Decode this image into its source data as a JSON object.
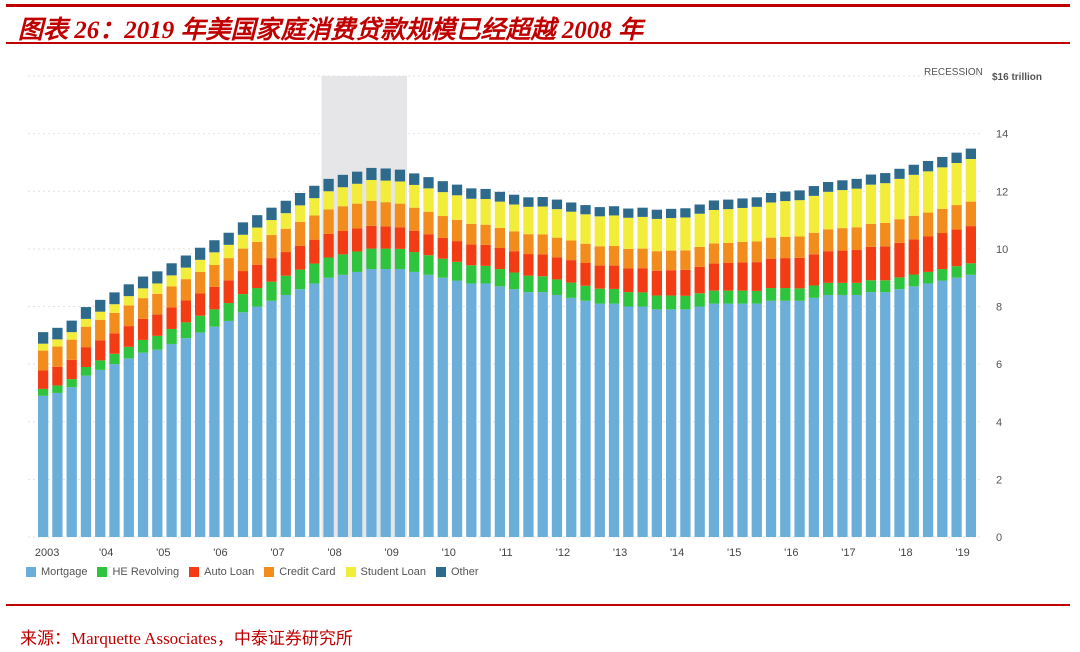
{
  "figure": {
    "title": "图表 26：2019 年美国家庭消费贷款规模已经超越 2008 年",
    "source": "来源：Marquette Associates，中泰证券研究所"
  },
  "chart_data": {
    "type": "bar",
    "stacked": true,
    "unit_label": "$16 trillion",
    "recession_label": "RECESSION",
    "recession_span": [
      "2008Q1",
      "2009Q2"
    ],
    "y_axis_position": "right",
    "ylim": [
      0,
      16
    ],
    "y_ticks": [
      "0",
      "2",
      "4",
      "6",
      "8",
      "10",
      "12",
      "14"
    ],
    "x_tick_labels": [
      "2003",
      "'04",
      "'05",
      "'06",
      "'07",
      "'08",
      "'09",
      "'10",
      "'11",
      "'12",
      "'13",
      "'14",
      "'15",
      "'16",
      "'17",
      "'18",
      "'19"
    ],
    "categories": [
      "2003Q1",
      "2003Q2",
      "2003Q3",
      "2003Q4",
      "2004Q1",
      "2004Q2",
      "2004Q3",
      "2004Q4",
      "2005Q1",
      "2005Q2",
      "2005Q3",
      "2005Q4",
      "2006Q1",
      "2006Q2",
      "2006Q3",
      "2006Q4",
      "2007Q1",
      "2007Q2",
      "2007Q3",
      "2007Q4",
      "2008Q1",
      "2008Q2",
      "2008Q3",
      "2008Q4",
      "2009Q1",
      "2009Q2",
      "2009Q3",
      "2009Q4",
      "2010Q1",
      "2010Q2",
      "2010Q3",
      "2010Q4",
      "2011Q1",
      "2011Q2",
      "2011Q3",
      "2011Q4",
      "2012Q1",
      "2012Q2",
      "2012Q3",
      "2012Q4",
      "2013Q1",
      "2013Q2",
      "2013Q3",
      "2013Q4",
      "2014Q1",
      "2014Q2",
      "2014Q3",
      "2014Q4",
      "2015Q1",
      "2015Q2",
      "2015Q3",
      "2015Q4",
      "2016Q1",
      "2016Q2",
      "2016Q3",
      "2016Q4",
      "2017Q1",
      "2017Q2",
      "2017Q3",
      "2017Q4",
      "2018Q1",
      "2018Q2",
      "2018Q3",
      "2018Q4",
      "2019Q1",
      "2019Q2"
    ],
    "series": [
      {
        "name": "Mortgage",
        "color": "#6aaed9",
        "values": [
          4.9,
          5.0,
          5.2,
          5.6,
          5.8,
          6.0,
          6.2,
          6.4,
          6.5,
          6.7,
          6.9,
          7.1,
          7.3,
          7.5,
          7.8,
          8.0,
          8.2,
          8.4,
          8.6,
          8.8,
          9.0,
          9.1,
          9.2,
          9.3,
          9.3,
          9.3,
          9.2,
          9.1,
          9.0,
          8.9,
          8.8,
          8.8,
          8.7,
          8.6,
          8.5,
          8.5,
          8.4,
          8.3,
          8.2,
          8.1,
          8.1,
          8.0,
          8.0,
          7.9,
          7.9,
          7.9,
          8.0,
          8.1,
          8.1,
          8.1,
          8.1,
          8.2,
          8.2,
          8.2,
          8.3,
          8.4,
          8.4,
          8.4,
          8.5,
          8.5,
          8.6,
          8.7,
          8.8,
          8.9,
          9.0,
          9.1
        ]
      },
      {
        "name": "HE Revolving",
        "color": "#2fc43d",
        "values": [
          0.24,
          0.26,
          0.28,
          0.3,
          0.33,
          0.36,
          0.4,
          0.44,
          0.48,
          0.52,
          0.55,
          0.58,
          0.6,
          0.62,
          0.63,
          0.64,
          0.66,
          0.67,
          0.68,
          0.69,
          0.7,
          0.71,
          0.71,
          0.71,
          0.71,
          0.7,
          0.69,
          0.68,
          0.66,
          0.65,
          0.63,
          0.61,
          0.6,
          0.58,
          0.57,
          0.55,
          0.54,
          0.53,
          0.52,
          0.52,
          0.51,
          0.5,
          0.49,
          0.48,
          0.48,
          0.47,
          0.46,
          0.45,
          0.45,
          0.45,
          0.44,
          0.44,
          0.44,
          0.43,
          0.43,
          0.42,
          0.42,
          0.42,
          0.41,
          0.41,
          0.41,
          0.41,
          0.4,
          0.4,
          0.4,
          0.4
        ]
      },
      {
        "name": "Auto Loan",
        "color": "#f23d14",
        "values": [
          0.64,
          0.65,
          0.67,
          0.69,
          0.7,
          0.71,
          0.72,
          0.73,
          0.74,
          0.75,
          0.76,
          0.77,
          0.78,
          0.79,
          0.8,
          0.81,
          0.82,
          0.82,
          0.83,
          0.83,
          0.82,
          0.81,
          0.8,
          0.79,
          0.77,
          0.75,
          0.74,
          0.73,
          0.72,
          0.72,
          0.72,
          0.73,
          0.73,
          0.74,
          0.75,
          0.76,
          0.77,
          0.78,
          0.79,
          0.8,
          0.81,
          0.82,
          0.84,
          0.86,
          0.88,
          0.9,
          0.92,
          0.94,
          0.96,
          0.98,
          1.0,
          1.02,
          1.04,
          1.06,
          1.08,
          1.1,
          1.12,
          1.14,
          1.16,
          1.18,
          1.2,
          1.22,
          1.23,
          1.25,
          1.27,
          1.29
        ]
      },
      {
        "name": "Credit Card",
        "color": "#f28c1c",
        "values": [
          0.69,
          0.7,
          0.7,
          0.71,
          0.71,
          0.71,
          0.72,
          0.72,
          0.72,
          0.73,
          0.74,
          0.75,
          0.76,
          0.77,
          0.78,
          0.79,
          0.8,
          0.81,
          0.83,
          0.84,
          0.85,
          0.86,
          0.86,
          0.87,
          0.84,
          0.82,
          0.8,
          0.78,
          0.76,
          0.74,
          0.72,
          0.7,
          0.7,
          0.69,
          0.69,
          0.69,
          0.68,
          0.68,
          0.67,
          0.67,
          0.68,
          0.68,
          0.68,
          0.68,
          0.68,
          0.68,
          0.69,
          0.7,
          0.7,
          0.71,
          0.72,
          0.73,
          0.74,
          0.74,
          0.75,
          0.76,
          0.78,
          0.79,
          0.8,
          0.81,
          0.82,
          0.82,
          0.83,
          0.84,
          0.85,
          0.85
        ]
      },
      {
        "name": "Student Loan",
        "color": "#f2ec3a",
        "values": [
          0.24,
          0.25,
          0.26,
          0.27,
          0.28,
          0.3,
          0.32,
          0.34,
          0.36,
          0.38,
          0.4,
          0.42,
          0.44,
          0.46,
          0.48,
          0.5,
          0.52,
          0.54,
          0.57,
          0.6,
          0.63,
          0.66,
          0.69,
          0.72,
          0.75,
          0.77,
          0.79,
          0.81,
          0.83,
          0.85,
          0.87,
          0.89,
          0.91,
          0.93,
          0.95,
          0.97,
          0.99,
          1.0,
          1.02,
          1.04,
          1.06,
          1.08,
          1.1,
          1.12,
          1.13,
          1.14,
          1.15,
          1.16,
          1.17,
          1.18,
          1.2,
          1.22,
          1.24,
          1.26,
          1.28,
          1.3,
          1.32,
          1.34,
          1.36,
          1.38,
          1.4,
          1.42,
          1.43,
          1.44,
          1.46,
          1.48
        ]
      },
      {
        "name": "Other",
        "color": "#2d6a8c",
        "values": [
          0.4,
          0.4,
          0.4,
          0.41,
          0.41,
          0.41,
          0.41,
          0.41,
          0.42,
          0.42,
          0.42,
          0.42,
          0.42,
          0.42,
          0.43,
          0.43,
          0.43,
          0.43,
          0.43,
          0.43,
          0.43,
          0.43,
          0.42,
          0.42,
          0.42,
          0.41,
          0.4,
          0.39,
          0.38,
          0.37,
          0.36,
          0.35,
          0.34,
          0.34,
          0.33,
          0.33,
          0.33,
          0.32,
          0.32,
          0.32,
          0.32,
          0.32,
          0.32,
          0.32,
          0.32,
          0.32,
          0.32,
          0.33,
          0.33,
          0.33,
          0.33,
          0.33,
          0.33,
          0.34,
          0.34,
          0.34,
          0.34,
          0.34,
          0.35,
          0.35,
          0.35,
          0.35,
          0.36,
          0.36,
          0.36,
          0.36
        ]
      }
    ],
    "legend_placement": "bottom-left",
    "grid": true
  }
}
